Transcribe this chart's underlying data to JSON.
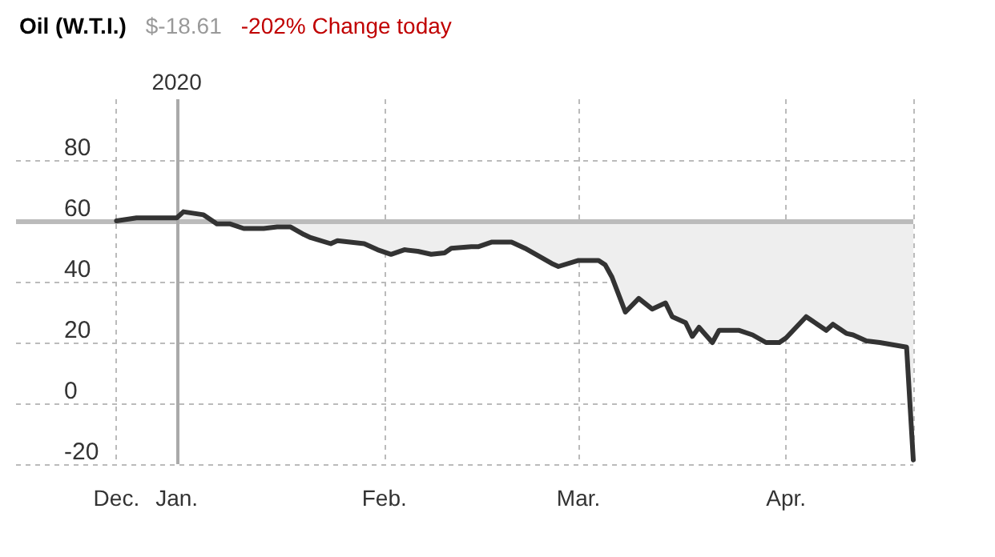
{
  "chart_data": {
    "type": "line",
    "title": "Oil (W.T.I.)",
    "subtitle": "$-18.61",
    "annotations": [
      "-202% Change today"
    ],
    "x": [
      "2019-12-23",
      "2019-12-26",
      "2019-12-29",
      "2020-01-01",
      "2020-01-02",
      "2020-01-05",
      "2020-01-07",
      "2020-01-09",
      "2020-01-11",
      "2020-01-14",
      "2020-01-16",
      "2020-01-18",
      "2020-01-20",
      "2020-01-21",
      "2020-01-24",
      "2020-01-25",
      "2020-01-29",
      "2020-01-31",
      "2020-02-02",
      "2020-02-04",
      "2020-02-06",
      "2020-02-08",
      "2020-02-10",
      "2020-02-11",
      "2020-02-14",
      "2020-02-15",
      "2020-02-17",
      "2020-02-18",
      "2020-02-20",
      "2020-02-22",
      "2020-02-24",
      "2020-02-26",
      "2020-02-27",
      "2020-03-01",
      "2020-03-04",
      "2020-03-05",
      "2020-03-06",
      "2020-03-08",
      "2020-03-10",
      "2020-03-12",
      "2020-03-14",
      "2020-03-15",
      "2020-03-17",
      "2020-03-18",
      "2020-03-19",
      "2020-03-21",
      "2020-03-22",
      "2020-03-25",
      "2020-03-27",
      "2020-03-29",
      "2020-03-31",
      "2020-04-01",
      "2020-04-04",
      "2020-04-07",
      "2020-04-08",
      "2020-04-10",
      "2020-04-11",
      "2020-04-13",
      "2020-04-15",
      "2020-04-19",
      "2020-04-20"
    ],
    "series": [
      {
        "color": "#333333",
        "values": [
          60,
          61,
          61,
          61,
          63,
          62,
          59,
          59,
          57.5,
          57.5,
          58,
          58,
          55.5,
          54.5,
          52.5,
          53.5,
          52.5,
          50.5,
          49,
          50.5,
          50,
          49,
          49.5,
          51,
          51.5,
          51.5,
          53,
          53,
          53,
          51,
          48.5,
          46,
          45,
          47,
          47,
          45.5,
          41.5,
          30,
          34.5,
          31,
          33,
          28.5,
          26.5,
          22,
          25,
          20,
          24,
          24,
          22.5,
          20,
          20,
          21.5,
          28.5,
          24,
          26,
          23,
          22.5,
          20.5,
          20,
          18.5,
          -18.6
        ],
        "lower": [
          60,
          61,
          61,
          61,
          63,
          62,
          59,
          59,
          57.5,
          57.5,
          58,
          58,
          55.5,
          54.5,
          52.5,
          53.5,
          52.5,
          50.5,
          49,
          50.5,
          50,
          49,
          49.5,
          51,
          51.5,
          51.5,
          53,
          53,
          53,
          51,
          48.5,
          46,
          45,
          47,
          47,
          45.5,
          41.5,
          30,
          34.5,
          31,
          33,
          28.5,
          26.5,
          22,
          25,
          20,
          24,
          24,
          22.5,
          20,
          20,
          21.5,
          28.5,
          24,
          26,
          23,
          22.5,
          20.5,
          20,
          18.5,
          -18.6
        ],
        "upper": [
          60,
          60,
          60,
          60,
          60,
          60,
          60,
          60,
          60,
          60,
          60,
          60,
          60,
          60,
          60,
          60,
          60,
          60,
          60,
          60,
          60,
          60,
          60,
          60,
          60,
          60,
          60,
          60,
          60,
          60,
          60,
          60,
          60,
          60,
          60,
          60,
          60,
          60,
          60,
          60,
          60,
          60,
          60,
          60,
          60,
          60,
          60,
          60,
          60,
          60,
          60,
          60,
          60,
          60,
          60,
          60,
          60,
          60,
          60,
          60,
          60
        ]
      }
    ],
    "xlim": [
      "2019-12-08",
      "2020-04-20"
    ],
    "xticks": [
      {
        "value": "2019-12-23",
        "label": "Dec."
      },
      {
        "value": "2020-01-01",
        "label": "Jan."
      },
      {
        "value": "2020-02-01",
        "label": "Feb."
      },
      {
        "value": "2020-03-01",
        "label": "Mar."
      },
      {
        "value": "2020-04-01",
        "label": "Apr."
      },
      {
        "value": "2020-04-20",
        "label": null
      }
    ],
    "ylim": [
      -20,
      100
    ],
    "yticks": [
      -20,
      0,
      20,
      40,
      60,
      80
    ],
    "grid": true,
    "marker": "none",
    "line_style": "solid",
    "ref_lines": [
      {
        "axis": "y",
        "value": 60,
        "label": null,
        "color": "#bbbbbb"
      },
      {
        "axis": "x",
        "value": "2020-01-01",
        "label": "2020",
        "color": "#aaaaaa"
      }
    ]
  }
}
